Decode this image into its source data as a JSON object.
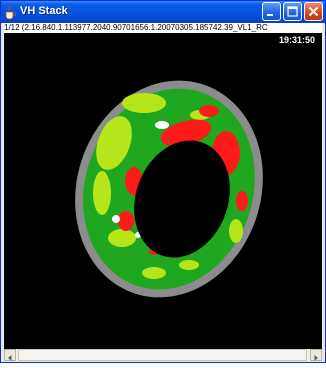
{
  "window": {
    "title": "VH Stack",
    "info_line": "1/12 (2.16.840.1.113977.2040.90701656.1.20070305.185742.39_VL1_RC",
    "timestamp": "19:31:50"
  },
  "colors": {
    "title_bar": "#0553e0",
    "image_bg": "#000000",
    "ring_outer": "#8c8c8c",
    "tissue_green": "#1fa81f",
    "tissue_light_green": "#b6e61a",
    "tissue_red": "#ff1a1a",
    "tissue_white": "#ffffff"
  },
  "icons": {
    "app": "java-coffee-icon",
    "minimize": "minimize-icon",
    "maximize": "maximize-icon",
    "close": "close-icon",
    "scroll_left": "arrow-left-icon",
    "scroll_right": "arrow-right-icon"
  }
}
